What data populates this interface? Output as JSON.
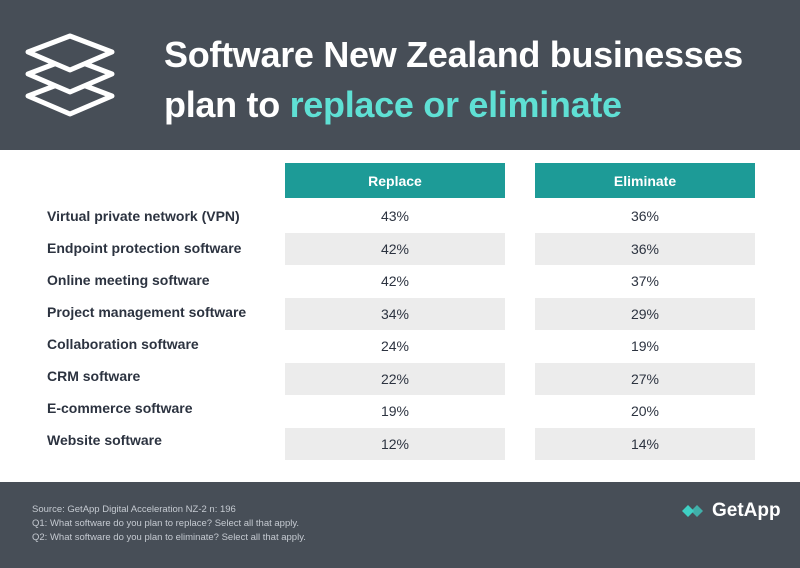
{
  "header": {
    "title_part1": "Software New Zealand businesses plan to ",
    "title_accent": "replace or eliminate",
    "logo_icon": "stacked-layers-icon"
  },
  "chart_data": {
    "type": "table",
    "columns": [
      "Replace",
      "Eliminate"
    ],
    "rows": [
      {
        "label": "Virtual private network (VPN)",
        "replace": "43%",
        "eliminate": "36%"
      },
      {
        "label": "Endpoint protection software",
        "replace": "42%",
        "eliminate": "36%"
      },
      {
        "label": "Online meeting software",
        "replace": "42%",
        "eliminate": "37%"
      },
      {
        "label": "Project management software",
        "replace": "34%",
        "eliminate": "29%"
      },
      {
        "label": "Collaboration software",
        "replace": "24%",
        "eliminate": "19%"
      },
      {
        "label": "CRM software",
        "replace": "22%",
        "eliminate": "27%"
      },
      {
        "label": "E-commerce software",
        "replace": "19%",
        "eliminate": "20%"
      },
      {
        "label": "Website software",
        "replace": "12%",
        "eliminate": "14%"
      }
    ]
  },
  "footer": {
    "source": "Source: GetApp Digital Acceleration NZ-2 n: 196",
    "q1": "Q1: What software do you plan to replace? Select all that apply.",
    "q2": "Q2: What software do you plan to eliminate? Select all that apply.",
    "brand_name": "GetApp",
    "brand_icon": "getapp-logo-icon"
  },
  "colors": {
    "header_bg": "#474e57",
    "accent_text": "#5fe0d4",
    "column_header_bg": "#1d9b97",
    "row_shade": "#ececec"
  }
}
